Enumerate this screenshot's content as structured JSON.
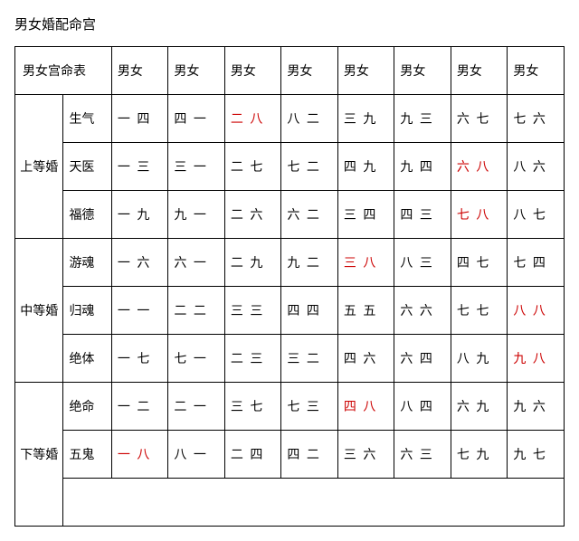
{
  "title": "男女婚配命宫",
  "table": {
    "header_left": "男女宫命表",
    "col_headers": [
      "男女",
      "男女",
      "男女",
      "男女",
      "男女",
      "男女",
      "男女",
      "男女"
    ],
    "groups": [
      {
        "label": "上等婚",
        "rows": [
          {
            "sub": "生气",
            "cells": [
              {
                "v": "一 四"
              },
              {
                "v": "四 一"
              },
              {
                "v": "二 八",
                "red": true
              },
              {
                "v": "八 二"
              },
              {
                "v": "三 九"
              },
              {
                "v": "九 三"
              },
              {
                "v": "六 七"
              },
              {
                "v": "七 六"
              }
            ]
          },
          {
            "sub": "天医",
            "cells": [
              {
                "v": "一 三"
              },
              {
                "v": "三 一"
              },
              {
                "v": "二 七"
              },
              {
                "v": "七 二"
              },
              {
                "v": "四 九"
              },
              {
                "v": "九 四"
              },
              {
                "v": "六 八",
                "red": true
              },
              {
                "v": "八 六"
              }
            ]
          },
          {
            "sub": "福德",
            "cells": [
              {
                "v": "一 九"
              },
              {
                "v": "九 一"
              },
              {
                "v": "二 六"
              },
              {
                "v": "六 二"
              },
              {
                "v": "三 四"
              },
              {
                "v": "四 三"
              },
              {
                "v": "七 八",
                "red": true
              },
              {
                "v": "八 七"
              }
            ]
          }
        ]
      },
      {
        "label": "中等婚",
        "rows": [
          {
            "sub": "游魂",
            "cells": [
              {
                "v": "一 六"
              },
              {
                "v": "六 一"
              },
              {
                "v": "二 九"
              },
              {
                "v": "九 二"
              },
              {
                "v": "三 八",
                "red": true
              },
              {
                "v": "八 三"
              },
              {
                "v": "四 七"
              },
              {
                "v": "七 四"
              }
            ]
          },
          {
            "sub": "归魂",
            "cells": [
              {
                "v": "一 一"
              },
              {
                "v": "二 二"
              },
              {
                "v": "三 三"
              },
              {
                "v": "四 四"
              },
              {
                "v": "五 五"
              },
              {
                "v": "六 六"
              },
              {
                "v": "七 七"
              },
              {
                "v": "八 八",
                "red": true
              }
            ]
          },
          {
            "sub": "绝体",
            "cells": [
              {
                "v": "一 七"
              },
              {
                "v": "七 一"
              },
              {
                "v": "二 三"
              },
              {
                "v": "三 二"
              },
              {
                "v": "四 六"
              },
              {
                "v": "六 四"
              },
              {
                "v": "八 九"
              },
              {
                "v": "九 八",
                "red": true
              }
            ]
          }
        ]
      },
      {
        "label": "下等婚",
        "rows": [
          {
            "sub": "绝命",
            "cells": [
              {
                "v": "一 二"
              },
              {
                "v": "二 一"
              },
              {
                "v": "三 七"
              },
              {
                "v": "七 三"
              },
              {
                "v": "四 八",
                "red": true
              },
              {
                "v": "八 四"
              },
              {
                "v": "六 九"
              },
              {
                "v": "九 六"
              }
            ]
          },
          {
            "sub": "五鬼",
            "cells": [
              {
                "v": "一 八",
                "red": true
              },
              {
                "v": "八 一"
              },
              {
                "v": "二 四"
              },
              {
                "v": "四 二"
              },
              {
                "v": "三 六"
              },
              {
                "v": "六 三"
              },
              {
                "v": "七 九"
              },
              {
                "v": "九 七"
              }
            ]
          }
        ],
        "trailing_empty": true
      }
    ]
  },
  "colors": {
    "text": "#000000",
    "red": "#cc0000",
    "border": "#000000",
    "background": "#ffffff"
  }
}
